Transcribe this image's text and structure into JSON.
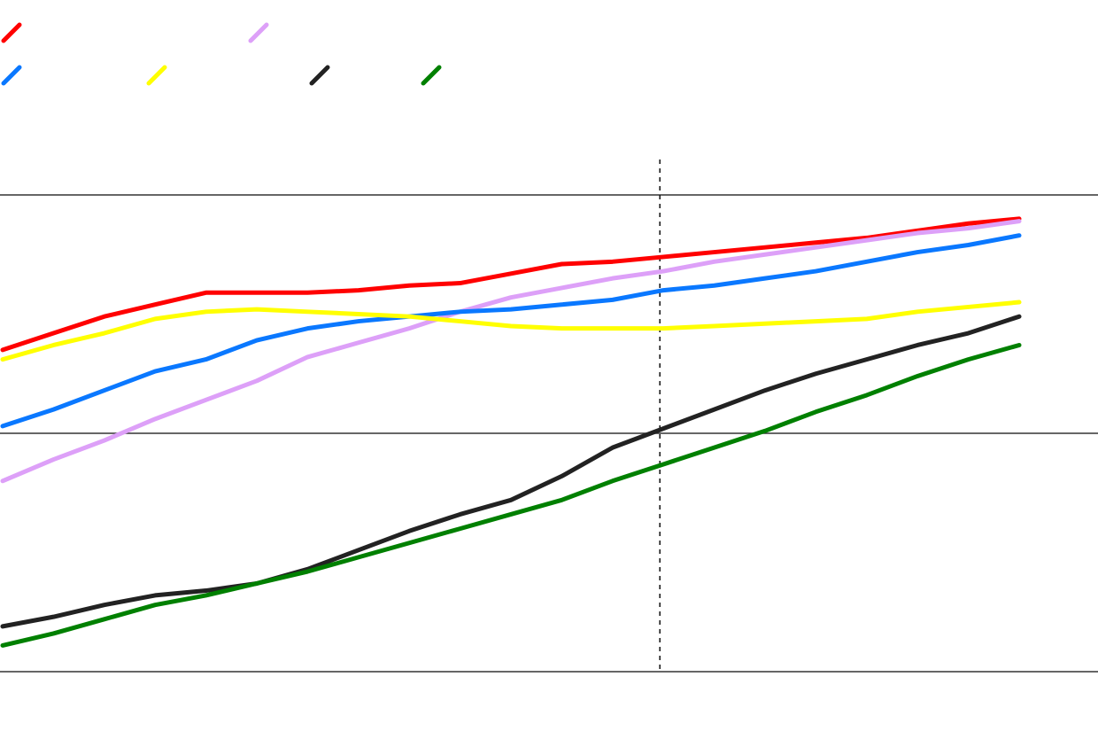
{
  "chart_data": {
    "type": "line",
    "title": "",
    "xlabel": "",
    "ylabel": "",
    "x": [
      0,
      1,
      2,
      3,
      4,
      5,
      6,
      7,
      8,
      9,
      10,
      11,
      12,
      13,
      14,
      15,
      16,
      17,
      18,
      19,
      20
    ],
    "ylim": [
      0,
      2
    ],
    "xlim": [
      0,
      21.5
    ],
    "grid": "horizontal",
    "horizontal_lines": [
      0,
      1,
      2
    ],
    "vertical_reference_line": {
      "x": 13,
      "style": "dashed"
    },
    "legend": "top-left",
    "series": [
      {
        "color": "#ff0000",
        "values": [
          1.35,
          1.42,
          1.49,
          1.54,
          1.59,
          1.59,
          1.59,
          1.6,
          1.62,
          1.63,
          1.67,
          1.71,
          1.72,
          1.74,
          1.76,
          1.78,
          1.8,
          1.82,
          1.85,
          1.88,
          1.9
        ]
      },
      {
        "color": "#dda0f8",
        "values": [
          0.8,
          0.89,
          0.97,
          1.06,
          1.14,
          1.22,
          1.32,
          1.38,
          1.44,
          1.51,
          1.57,
          1.61,
          1.65,
          1.68,
          1.72,
          1.75,
          1.78,
          1.81,
          1.84,
          1.86,
          1.89
        ]
      },
      {
        "color": "#0a78ff",
        "values": [
          1.03,
          1.1,
          1.18,
          1.26,
          1.31,
          1.39,
          1.44,
          1.47,
          1.49,
          1.51,
          1.52,
          1.54,
          1.56,
          1.6,
          1.62,
          1.65,
          1.68,
          1.72,
          1.76,
          1.79,
          1.83
        ]
      },
      {
        "color": "#ffff00",
        "values": [
          1.31,
          1.37,
          1.42,
          1.48,
          1.51,
          1.52,
          1.51,
          1.5,
          1.49,
          1.47,
          1.45,
          1.44,
          1.44,
          1.44,
          1.45,
          1.46,
          1.47,
          1.48,
          1.51,
          1.53,
          1.55
        ]
      },
      {
        "color": "#222222",
        "values": [
          0.19,
          0.23,
          0.28,
          0.32,
          0.34,
          0.37,
          0.43,
          0.51,
          0.59,
          0.66,
          0.72,
          0.82,
          0.94,
          1.02,
          1.1,
          1.18,
          1.25,
          1.31,
          1.37,
          1.42,
          1.49
        ]
      },
      {
        "color": "#008000",
        "values": [
          0.11,
          0.16,
          0.22,
          0.28,
          0.32,
          0.37,
          0.42,
          0.48,
          0.54,
          0.6,
          0.66,
          0.72,
          0.8,
          0.87,
          0.94,
          1.01,
          1.09,
          1.16,
          1.24,
          1.31,
          1.37
        ]
      }
    ]
  }
}
